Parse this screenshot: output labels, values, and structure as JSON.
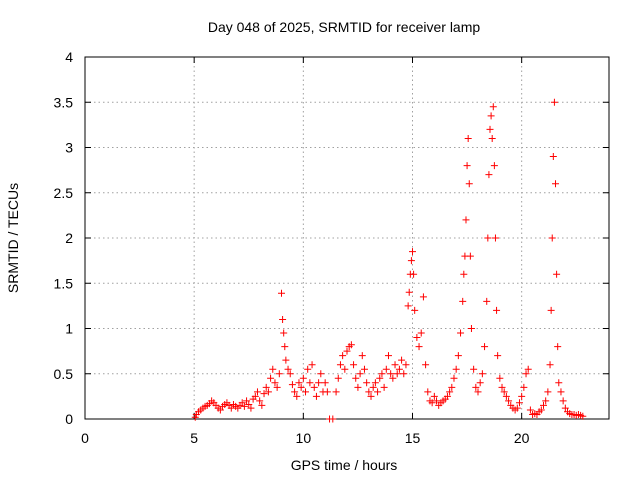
{
  "chart_data": {
    "type": "scatter",
    "title": "Day 048 of 2025, SRMTID for receiver lamp",
    "xlabel": "GPS time / hours",
    "ylabel": "SRMTID / TECUs",
    "xlim": [
      0,
      24
    ],
    "ylim": [
      0,
      4
    ],
    "x_ticks": [
      "0",
      "5",
      "10",
      "15",
      "20"
    ],
    "x_tick_values": [
      0,
      5,
      10,
      15,
      20
    ],
    "y_ticks": [
      "0",
      "0.5",
      "1",
      "1.5",
      "2",
      "2.5",
      "3",
      "3.5",
      "4"
    ],
    "y_tick_values": [
      0,
      0.5,
      1,
      1.5,
      2,
      2.5,
      3,
      3.5,
      4
    ],
    "grid": true,
    "marker": "plus",
    "color": "#ff0000",
    "series": [
      {
        "name": "SRMTID",
        "points": [
          [
            5.05,
            0.02
          ],
          [
            5.1,
            0.05
          ],
          [
            5.2,
            0.08
          ],
          [
            5.3,
            0.1
          ],
          [
            5.4,
            0.12
          ],
          [
            5.5,
            0.14
          ],
          [
            5.6,
            0.15
          ],
          [
            5.7,
            0.17
          ],
          [
            5.8,
            0.2
          ],
          [
            5.9,
            0.18
          ],
          [
            6.0,
            0.15
          ],
          [
            6.1,
            0.12
          ],
          [
            6.2,
            0.1
          ],
          [
            6.3,
            0.14
          ],
          [
            6.4,
            0.16
          ],
          [
            6.5,
            0.18
          ],
          [
            6.6,
            0.15
          ],
          [
            6.7,
            0.12
          ],
          [
            6.8,
            0.16
          ],
          [
            6.9,
            0.14
          ],
          [
            7.0,
            0.12
          ],
          [
            7.1,
            0.15
          ],
          [
            7.2,
            0.18
          ],
          [
            7.3,
            0.14
          ],
          [
            7.4,
            0.2
          ],
          [
            7.5,
            0.16
          ],
          [
            7.6,
            0.12
          ],
          [
            7.7,
            0.22
          ],
          [
            7.8,
            0.25
          ],
          [
            7.9,
            0.3
          ],
          [
            8.0,
            0.2
          ],
          [
            8.1,
            0.15
          ],
          [
            8.2,
            0.28
          ],
          [
            8.3,
            0.35
          ],
          [
            8.4,
            0.3
          ],
          [
            8.5,
            0.45
          ],
          [
            8.6,
            0.55
          ],
          [
            8.7,
            0.4
          ],
          [
            8.8,
            0.35
          ],
          [
            8.9,
            0.5
          ],
          [
            9.0,
            1.39
          ],
          [
            9.05,
            1.1
          ],
          [
            9.1,
            0.95
          ],
          [
            9.15,
            0.8
          ],
          [
            9.2,
            0.65
          ],
          [
            9.3,
            0.55
          ],
          [
            9.4,
            0.5
          ],
          [
            9.5,
            0.38
          ],
          [
            9.6,
            0.3
          ],
          [
            9.7,
            0.25
          ],
          [
            9.8,
            0.4
          ],
          [
            9.9,
            0.35
          ],
          [
            10.0,
            0.45
          ],
          [
            10.1,
            0.3
          ],
          [
            10.2,
            0.55
          ],
          [
            10.3,
            0.4
          ],
          [
            10.4,
            0.6
          ],
          [
            10.5,
            0.35
          ],
          [
            10.6,
            0.25
          ],
          [
            10.7,
            0.4
          ],
          [
            10.8,
            0.5
          ],
          [
            10.9,
            0.3
          ],
          [
            11.0,
            0.4
          ],
          [
            11.1,
            0.3
          ],
          [
            11.2,
            0.0
          ],
          [
            11.35,
            0.0
          ],
          [
            11.5,
            0.3
          ],
          [
            11.6,
            0.45
          ],
          [
            11.7,
            0.6
          ],
          [
            11.8,
            0.7
          ],
          [
            11.9,
            0.55
          ],
          [
            12.0,
            0.75
          ],
          [
            12.1,
            0.8
          ],
          [
            12.2,
            0.82
          ],
          [
            12.3,
            0.6
          ],
          [
            12.4,
            0.45
          ],
          [
            12.5,
            0.35
          ],
          [
            12.6,
            0.5
          ],
          [
            12.7,
            0.7
          ],
          [
            12.8,
            0.55
          ],
          [
            12.9,
            0.4
          ],
          [
            13.0,
            0.3
          ],
          [
            13.1,
            0.25
          ],
          [
            13.2,
            0.35
          ],
          [
            13.3,
            0.4
          ],
          [
            13.4,
            0.3
          ],
          [
            13.5,
            0.45
          ],
          [
            13.6,
            0.5
          ],
          [
            13.7,
            0.35
          ],
          [
            13.8,
            0.55
          ],
          [
            13.9,
            0.7
          ],
          [
            14.0,
            0.5
          ],
          [
            14.1,
            0.45
          ],
          [
            14.2,
            0.6
          ],
          [
            14.3,
            0.5
          ],
          [
            14.4,
            0.55
          ],
          [
            14.5,
            0.65
          ],
          [
            14.6,
            0.5
          ],
          [
            14.7,
            0.6
          ],
          [
            14.8,
            1.25
          ],
          [
            14.85,
            1.4
          ],
          [
            14.9,
            1.6
          ],
          [
            14.95,
            1.75
          ],
          [
            15.0,
            1.85
          ],
          [
            15.05,
            1.6
          ],
          [
            15.1,
            1.2
          ],
          [
            15.2,
            0.9
          ],
          [
            15.3,
            0.8
          ],
          [
            15.4,
            0.95
          ],
          [
            15.5,
            1.35
          ],
          [
            15.6,
            0.6
          ],
          [
            15.7,
            0.3
          ],
          [
            15.8,
            0.2
          ],
          [
            15.9,
            0.18
          ],
          [
            16.0,
            0.25
          ],
          [
            16.1,
            0.2
          ],
          [
            16.2,
            0.15
          ],
          [
            16.3,
            0.18
          ],
          [
            16.4,
            0.2
          ],
          [
            16.5,
            0.22
          ],
          [
            16.6,
            0.25
          ],
          [
            16.7,
            0.3
          ],
          [
            16.8,
            0.35
          ],
          [
            16.9,
            0.45
          ],
          [
            17.0,
            0.55
          ],
          [
            17.1,
            0.7
          ],
          [
            17.2,
            0.95
          ],
          [
            17.3,
            1.3
          ],
          [
            17.35,
            1.6
          ],
          [
            17.4,
            1.8
          ],
          [
            17.45,
            2.2
          ],
          [
            17.5,
            2.8
          ],
          [
            17.55,
            3.1
          ],
          [
            17.6,
            2.6
          ],
          [
            17.65,
            1.8
          ],
          [
            17.7,
            1.0
          ],
          [
            17.8,
            0.55
          ],
          [
            17.9,
            0.35
          ],
          [
            18.0,
            0.3
          ],
          [
            18.1,
            0.4
          ],
          [
            18.2,
            0.5
          ],
          [
            18.3,
            0.8
          ],
          [
            18.4,
            1.3
          ],
          [
            18.45,
            2.0
          ],
          [
            18.5,
            2.7
          ],
          [
            18.55,
            3.2
          ],
          [
            18.6,
            3.35
          ],
          [
            18.65,
            3.1
          ],
          [
            18.7,
            3.45
          ],
          [
            18.75,
            2.8
          ],
          [
            18.8,
            2.0
          ],
          [
            18.85,
            1.2
          ],
          [
            18.9,
            0.7
          ],
          [
            19.0,
            0.45
          ],
          [
            19.1,
            0.35
          ],
          [
            19.2,
            0.3
          ],
          [
            19.3,
            0.25
          ],
          [
            19.4,
            0.2
          ],
          [
            19.5,
            0.15
          ],
          [
            19.6,
            0.12
          ],
          [
            19.7,
            0.1
          ],
          [
            19.8,
            0.12
          ],
          [
            19.9,
            0.18
          ],
          [
            20.0,
            0.25
          ],
          [
            20.1,
            0.35
          ],
          [
            20.2,
            0.5
          ],
          [
            20.3,
            0.55
          ],
          [
            20.4,
            0.1
          ],
          [
            20.5,
            0.05
          ],
          [
            20.6,
            0.06
          ],
          [
            20.7,
            0.05
          ],
          [
            20.8,
            0.08
          ],
          [
            20.9,
            0.1
          ],
          [
            21.0,
            0.15
          ],
          [
            21.1,
            0.2
          ],
          [
            21.2,
            0.3
          ],
          [
            21.3,
            0.6
          ],
          [
            21.35,
            1.2
          ],
          [
            21.4,
            2.0
          ],
          [
            21.45,
            2.9
          ],
          [
            21.5,
            3.5
          ],
          [
            21.55,
            2.6
          ],
          [
            21.6,
            1.6
          ],
          [
            21.65,
            0.8
          ],
          [
            21.7,
            0.4
          ],
          [
            21.8,
            0.3
          ],
          [
            21.9,
            0.2
          ],
          [
            22.0,
            0.12
          ],
          [
            22.1,
            0.08
          ],
          [
            22.2,
            0.06
          ],
          [
            22.3,
            0.05
          ],
          [
            22.4,
            0.05
          ],
          [
            22.5,
            0.04
          ],
          [
            22.6,
            0.05
          ],
          [
            22.7,
            0.04
          ],
          [
            22.8,
            0.03
          ]
        ]
      }
    ]
  }
}
